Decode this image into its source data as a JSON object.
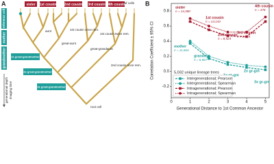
{
  "diagram": {
    "panel_label": "A",
    "leaf_label": "leaf cells",
    "root_label": "root cell",
    "reference_label": "reference cell",
    "ancestors": [
      "mother",
      "grandmother",
      "1x great-grandmother",
      "2x great-grandmother",
      "3x great-grandmother"
    ],
    "cousins": [
      "sister",
      "1st cousin",
      "2nd cousin",
      "3rd cousin",
      "4th cousin"
    ],
    "relatives": [
      "aunt",
      "great-aunt",
      "great-grandaunt",
      "1st cousin once rem.",
      "1st cousin twice rem.",
      "2nd cousin once rem."
    ],
    "depth_label": "generational depth",
    "time_label": "imaging time"
  },
  "chart_data": {
    "type": "line",
    "panel_label": "B",
    "x_label": "Generational Distance to 1st Common Ancestor",
    "y_label": "Correlation Coefficient ± 95% CI",
    "x": [
      1,
      2,
      3,
      4,
      5
    ],
    "xlim": [
      0,
      5.2
    ],
    "xticks": [
      0,
      1,
      2,
      3,
      4,
      5
    ],
    "ylim": [
      -0.35,
      0.9
    ],
    "yticks": [
      -0.2,
      {
        "value": 0,
        "label": "0.0"
      },
      0.2,
      0.4,
      0.6,
      0.8
    ],
    "series": [
      {
        "name": "Intergenerational; Pearson",
        "color": "#1f9e9a",
        "dash": "dashed",
        "marker": "square",
        "values": [
          0.37,
          0.17,
          0.09,
          0.05,
          0.02
        ]
      },
      {
        "name": "Intergenerational; Spearman",
        "color": "#1f9e9a",
        "dash": "dotted",
        "marker": "circle",
        "values": [
          0.4,
          0.2,
          0.12,
          0.08,
          0.06
        ]
      },
      {
        "name": "Intragenerational; Pearson",
        "color": "#a3172b",
        "dash": "dashed",
        "marker": "square",
        "values": [
          0.66,
          0.55,
          0.47,
          0.46,
          0.66
        ]
      },
      {
        "name": "Intragenerational; Spearman",
        "color": "#a3172b",
        "dash": "dotted",
        "marker": "circle",
        "values": [
          0.7,
          0.6,
          0.52,
          0.52,
          0.72
        ]
      }
    ],
    "annotations": [
      {
        "text": "sister",
        "note": "n = 14,380"
      },
      {
        "text": "1st cousin",
        "note": "n = 14,144"
      },
      {
        "text": "2nd cousin",
        "note": "n = 8,524"
      },
      {
        "text": "3rd cousin",
        "note": "n = 2,484"
      },
      {
        "text": "4th cousin",
        "note": "n = 478"
      },
      {
        "text": "mother",
        "note": "n = 11,664"
      },
      {
        "text": "grandma",
        "note": "n = 6,667"
      },
      {
        "text": "1x gr-gm"
      },
      {
        "text": "2x gr-gm"
      },
      {
        "text": "3x gr-gm"
      }
    ],
    "trees_note": "5,032 unique lineage trees"
  }
}
